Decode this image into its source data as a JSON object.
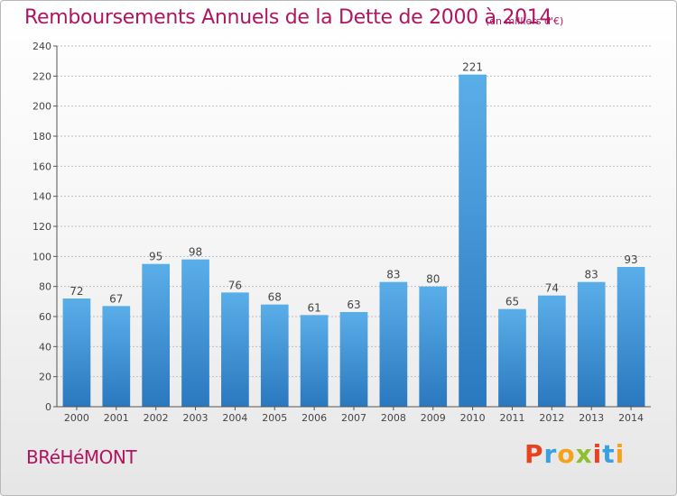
{
  "header": {
    "title": "Remboursements Annuels de la Dette de 2000 à 2014",
    "unit": "(en milliers d'€)"
  },
  "footer": {
    "commune": "BRéHéMONT",
    "logo_text": "Proxiti",
    "logo_colors": [
      "#e8431f",
      "#3aa0e0",
      "#f3a21b",
      "#8dbf2e",
      "#e8431f",
      "#3aa0e0",
      "#f3a21b"
    ]
  },
  "colors": {
    "bar_top": "#5aaee8",
    "bar_bottom": "#2a78bf",
    "title": "#b01560",
    "grid": "#bfbfbf"
  },
  "chart_data": {
    "type": "bar",
    "title": "Remboursements Annuels de la Dette de 2000 à 2014",
    "categories": [
      "2000",
      "2001",
      "2002",
      "2003",
      "2004",
      "2005",
      "2006",
      "2007",
      "2008",
      "2009",
      "2010",
      "2011",
      "2012",
      "2013",
      "2014"
    ],
    "values": [
      72,
      67,
      95,
      98,
      76,
      68,
      61,
      63,
      83,
      80,
      221,
      65,
      74,
      83,
      93
    ],
    "ylim": [
      0,
      240
    ],
    "yticks": [
      0,
      20,
      40,
      60,
      80,
      100,
      120,
      140,
      160,
      180,
      200,
      220,
      240
    ],
    "grid": true,
    "xlabel": "",
    "ylabel": ""
  }
}
